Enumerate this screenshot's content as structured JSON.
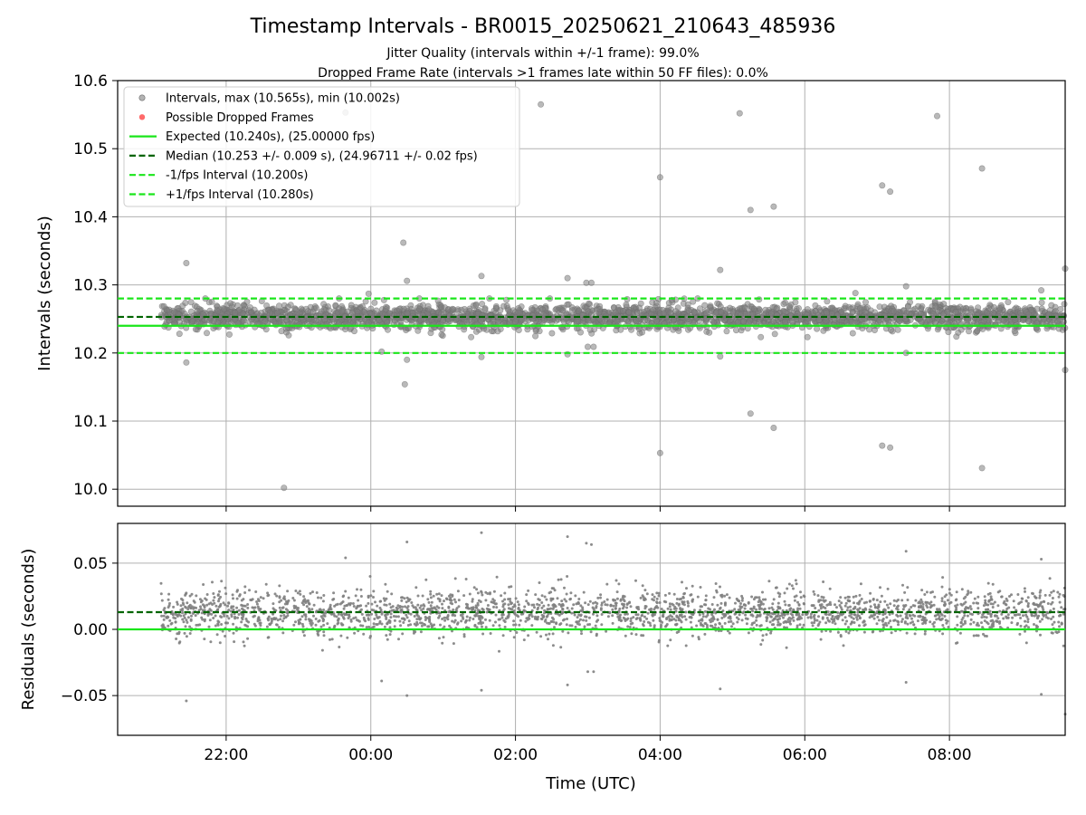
{
  "title": "Timestamp Intervals - BR0015_20250621_210643_485936",
  "subtitle_1": "Jitter Quality (intervals within +/-1 frame): 99.0%",
  "subtitle_2": "Dropped Frame Rate (intervals >1 frames late within 50 FF files): 0.0%",
  "xlabel": "Time (UTC)",
  "colors": {
    "points": "#808080",
    "dropped": "#ff5050",
    "expected": "#1ae61a",
    "median": "#006400",
    "grid": "#b0b0b0"
  },
  "chart_data": [
    {
      "type": "scatter",
      "panel": "intervals",
      "ylabel": "Intervals (seconds)",
      "ylim": [
        9.975,
        10.6
      ],
      "yticks": [
        10.0,
        10.1,
        10.2,
        10.3,
        10.4,
        10.5,
        10.6
      ],
      "ytick_labels": [
        "10.0",
        "10.1",
        "10.2",
        "10.3",
        "10.4",
        "10.5",
        "10.6"
      ],
      "xlim_hours": [
        20.5,
        33.6
      ],
      "xticks_hours": [
        22,
        24,
        26,
        28,
        30,
        32
      ],
      "xtick_labels": [
        "22:00",
        "00:00",
        "02:00",
        "04:00",
        "06:00",
        "08:00"
      ],
      "grid": true,
      "legend_position": "top-left",
      "legend": [
        "Intervals, max (10.565s), min (10.002s)",
        "Possible Dropped Frames",
        "Expected (10.240s), (25.00000 fps)",
        "Median (10.253 +/- 0.009 s), (24.96711 +/- 0.02 fps)",
        "-1/fps Interval (10.200s)",
        "+1/fps Interval (10.280s)"
      ],
      "lines": [
        {
          "name": "Expected",
          "y": 10.24,
          "style": "solid"
        },
        {
          "name": "Median",
          "y": 10.253,
          "style": "dashed"
        },
        {
          "name": "-1/fps Interval",
          "y": 10.2,
          "style": "dashed"
        },
        {
          "name": "+1/fps Interval",
          "y": 10.28,
          "style": "dashed"
        }
      ],
      "band": {
        "x_start_hours": 21.1,
        "x_end_hours": 33.6,
        "center": 10.253,
        "spread": 0.009,
        "count": 2600
      },
      "outliers": [
        [
          21.45,
          10.332
        ],
        [
          21.45,
          10.186
        ],
        [
          22.8,
          10.002
        ],
        [
          23.65,
          10.553
        ],
        [
          23.97,
          10.287
        ],
        [
          24.45,
          10.362
        ],
        [
          24.5,
          10.306
        ],
        [
          24.5,
          10.19
        ],
        [
          24.47,
          10.154
        ],
        [
          24.15,
          10.202
        ],
        [
          25.53,
          10.313
        ],
        [
          25.53,
          10.194
        ],
        [
          26.35,
          10.565
        ],
        [
          26.72,
          10.31
        ],
        [
          26.72,
          10.198
        ],
        [
          26.98,
          10.303
        ],
        [
          27.05,
          10.303
        ],
        [
          27.0,
          10.209
        ],
        [
          27.08,
          10.209
        ],
        [
          28.0,
          10.458
        ],
        [
          28.0,
          10.053
        ],
        [
          28.83,
          10.322
        ],
        [
          28.83,
          10.195
        ],
        [
          29.1,
          10.552
        ],
        [
          29.25,
          10.41
        ],
        [
          29.25,
          10.111
        ],
        [
          29.57,
          10.415
        ],
        [
          29.57,
          10.09
        ],
        [
          30.7,
          10.288
        ],
        [
          31.07,
          10.446
        ],
        [
          31.18,
          10.437
        ],
        [
          31.07,
          10.064
        ],
        [
          31.18,
          10.061
        ],
        [
          31.4,
          10.298
        ],
        [
          31.4,
          10.2
        ],
        [
          31.83,
          10.548
        ],
        [
          32.45,
          10.471
        ],
        [
          32.45,
          10.031
        ],
        [
          33.27,
          10.292
        ],
        [
          33.6,
          10.324
        ],
        [
          33.6,
          10.175
        ]
      ]
    },
    {
      "type": "scatter",
      "panel": "residuals",
      "ylabel": "Residuals (seconds)",
      "ylim": [
        -0.08,
        0.08
      ],
      "yticks": [
        -0.05,
        0.0,
        0.05
      ],
      "ytick_labels": [
        "−0.05",
        "0.00",
        "0.05"
      ],
      "xlim_hours": [
        20.5,
        33.6
      ],
      "xticks_hours": [
        22,
        24,
        26,
        28,
        30,
        32
      ],
      "xtick_labels": [
        "22:00",
        "00:00",
        "02:00",
        "04:00",
        "06:00",
        "08:00"
      ],
      "grid": true,
      "lines": [
        {
          "name": "Expected",
          "y": 0.0,
          "style": "solid"
        },
        {
          "name": "Median",
          "y": 0.013,
          "style": "dashed"
        }
      ],
      "band": {
        "x_start_hours": 21.1,
        "x_end_hours": 33.6,
        "center": 0.013,
        "spread": 0.009,
        "count": 2600
      },
      "outliers": [
        [
          21.45,
          -0.054
        ],
        [
          23.65,
          0.054
        ],
        [
          24.15,
          -0.039
        ],
        [
          24.5,
          0.066
        ],
        [
          24.5,
          -0.05
        ],
        [
          25.53,
          0.073
        ],
        [
          25.53,
          -0.046
        ],
        [
          26.72,
          0.07
        ],
        [
          26.72,
          -0.042
        ],
        [
          26.98,
          0.065
        ],
        [
          27.05,
          0.064
        ],
        [
          27.0,
          -0.032
        ],
        [
          27.08,
          -0.032
        ],
        [
          28.83,
          -0.045
        ],
        [
          31.4,
          0.059
        ],
        [
          31.4,
          -0.04
        ],
        [
          33.27,
          0.053
        ],
        [
          33.27,
          -0.049
        ],
        [
          33.6,
          -0.064
        ]
      ]
    }
  ]
}
